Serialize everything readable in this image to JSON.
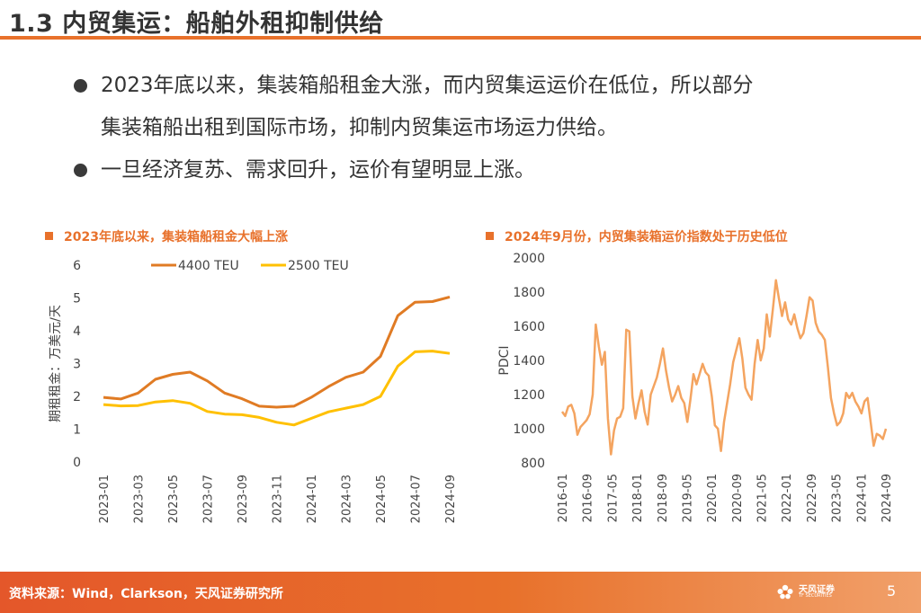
{
  "header": {
    "title": "1.3 内贸集运：船舶外租抑制供给"
  },
  "bullets": [
    {
      "line1": "2023年底以来，集装箱船租金大涨，而内贸集运运价在低位，所以部分",
      "line2": "集装箱船出租到国际市场，抑制内贸集运市场运力供给。"
    },
    {
      "line1": "一旦经济复苏、需求回升，运价有望明显上涨。"
    }
  ],
  "footer": {
    "source": "资料来源：Wind，Clarkson，天风证券研究所",
    "brand": "天风证券",
    "brand_en": "TF SECURITIES",
    "page": "5"
  },
  "colors": {
    "accent": "#e8712b",
    "series_4400": "#e07b24",
    "series_2500": "#ffc000",
    "pdci": "#f4a460"
  },
  "chart_data": [
    {
      "type": "line",
      "title": "2023年底以来，集装箱船租金大幅上涨",
      "ylabel": "期租租金：万美元/天",
      "xlabel": "",
      "ylim": [
        0,
        6
      ],
      "yticks": [
        "0",
        "1",
        "2",
        "3",
        "4",
        "5",
        "6"
      ],
      "xtick_labels": [
        "2023-01",
        "2023-03",
        "2023-05",
        "2023-07",
        "2023-09",
        "2023-11",
        "2024-01",
        "2024-03",
        "2024-05",
        "2024-07",
        "2024-09"
      ],
      "categories": [
        "2023-01",
        "2023-02",
        "2023-03",
        "2023-04",
        "2023-05",
        "2023-06",
        "2023-07",
        "2023-08",
        "2023-09",
        "2023-10",
        "2023-11",
        "2023-12",
        "2024-01",
        "2024-02",
        "2024-03",
        "2024-04",
        "2024-05",
        "2024-06",
        "2024-07",
        "2024-08",
        "2024-09"
      ],
      "series": [
        {
          "name": "4400 TEU",
          "values": [
            1.97,
            1.92,
            2.1,
            2.52,
            2.67,
            2.74,
            2.47,
            2.1,
            1.93,
            1.7,
            1.67,
            1.7,
            1.97,
            2.3,
            2.58,
            2.74,
            3.22,
            4.46,
            4.87,
            4.89,
            5.03
          ]
        },
        {
          "name": "2500 TEU",
          "values": [
            1.75,
            1.71,
            1.72,
            1.83,
            1.87,
            1.79,
            1.54,
            1.46,
            1.44,
            1.36,
            1.21,
            1.13,
            1.33,
            1.53,
            1.64,
            1.75,
            2.0,
            2.92,
            3.36,
            3.38,
            3.31
          ]
        }
      ]
    },
    {
      "type": "line",
      "title": "2024年9月份，内贸集装箱运价指数处于历史低位",
      "ylabel": "PDCI",
      "xlabel": "",
      "ylim": [
        800,
        2000
      ],
      "yticks": [
        "800",
        "1000",
        "1200",
        "1400",
        "1600",
        "1800",
        "2000"
      ],
      "xtick_labels": [
        "2016-01",
        "2016-09",
        "2017-05",
        "2018-01",
        "2018-09",
        "2019-05",
        "2020-01",
        "2020-09",
        "2021-05",
        "2022-01",
        "2022-09",
        "2023-05",
        "2024-01",
        "2024-09"
      ],
      "series": [
        {
          "name": "PDCI",
          "values": [
            1100,
            1075,
            1130,
            1140,
            1090,
            965,
            1010,
            1030,
            1050,
            1085,
            1200,
            1610,
            1480,
            1375,
            1450,
            1060,
            850,
            990,
            1060,
            1070,
            1120,
            1580,
            1570,
            1190,
            1060,
            1150,
            1225,
            1100,
            1025,
            1200,
            1250,
            1300,
            1380,
            1470,
            1340,
            1240,
            1160,
            1200,
            1250,
            1180,
            1150,
            1040,
            1170,
            1320,
            1260,
            1320,
            1380,
            1330,
            1310,
            1190,
            1020,
            1000,
            870,
            1040,
            1150,
            1260,
            1390,
            1460,
            1530,
            1410,
            1240,
            1200,
            1170,
            1380,
            1520,
            1400,
            1470,
            1670,
            1540,
            1700,
            1870,
            1760,
            1660,
            1740,
            1640,
            1610,
            1670,
            1590,
            1530,
            1560,
            1660,
            1770,
            1750,
            1620,
            1570,
            1550,
            1520,
            1360,
            1180,
            1090,
            1020,
            1040,
            1090,
            1210,
            1180,
            1210,
            1160,
            1130,
            1090,
            1160,
            1180,
            1040,
            900,
            970,
            960,
            940,
            1000
          ]
        }
      ]
    }
  ]
}
